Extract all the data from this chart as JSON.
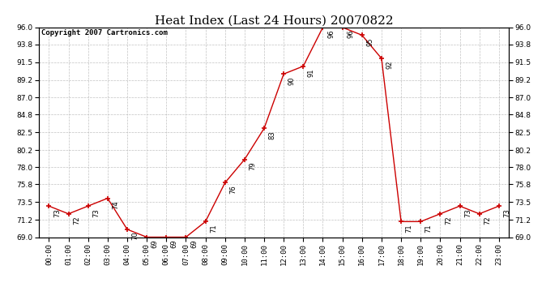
{
  "title": "Heat Index (Last 24 Hours) 20070822",
  "copyright": "Copyright 2007 Cartronics.com",
  "hours": [
    0,
    1,
    2,
    3,
    4,
    5,
    6,
    7,
    8,
    9,
    10,
    11,
    12,
    13,
    14,
    15,
    16,
    17,
    18,
    19,
    20,
    21,
    22,
    23
  ],
  "values": [
    73,
    72,
    73,
    74,
    70,
    69,
    69,
    69,
    71,
    76,
    79,
    83,
    90,
    91,
    96,
    96,
    95,
    92,
    71,
    71,
    72,
    73,
    72,
    73
  ],
  "ylim": [
    69.0,
    96.0
  ],
  "yticks": [
    69.0,
    71.2,
    73.5,
    75.8,
    78.0,
    80.2,
    82.5,
    84.8,
    87.0,
    89.2,
    91.5,
    93.8,
    96.0
  ],
  "line_color": "#cc0000",
  "marker_color": "#cc0000",
  "grid_color": "#bbbbbb",
  "bg_color": "#ffffff",
  "title_fontsize": 11,
  "label_fontsize": 6.5,
  "annotation_fontsize": 6.0,
  "copyright_fontsize": 6.5
}
